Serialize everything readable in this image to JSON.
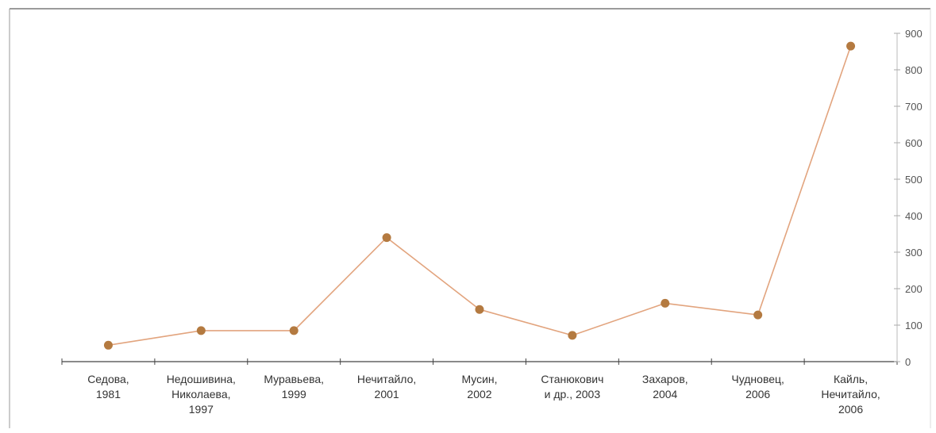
{
  "chart_data": {
    "type": "line",
    "categories": [
      [
        "Седова,",
        "1981"
      ],
      [
        "Недошивина,",
        "Николаева,",
        "1997"
      ],
      [
        "Муравьева,",
        "1999"
      ],
      [
        "Нечитайло,",
        "2001"
      ],
      [
        "Мусин,",
        "2002"
      ],
      [
        "Станюкович",
        "и др., 2003"
      ],
      [
        "Захаров,",
        "2004"
      ],
      [
        "Чудновец,",
        "2006"
      ],
      [
        "Кайль,",
        "Нечитайло,",
        "2006"
      ]
    ],
    "series": [
      {
        "values": [
          45,
          85,
          85,
          340,
          143,
          72,
          160,
          128,
          865
        ]
      }
    ],
    "ylim": [
      0,
      900
    ],
    "yticks": [
      0,
      100,
      200,
      300,
      400,
      500,
      600,
      700,
      800,
      900
    ],
    "y_axis_position": "right",
    "grid": false,
    "legend": "none",
    "colors": {
      "line": "#e2a47e",
      "marker": "#b47a40",
      "axis": "#444444",
      "frame": "#7a7a7a",
      "category_text": "#333333",
      "faded_category_text": "#a8a8a8",
      "tick_text": "#555555"
    }
  }
}
